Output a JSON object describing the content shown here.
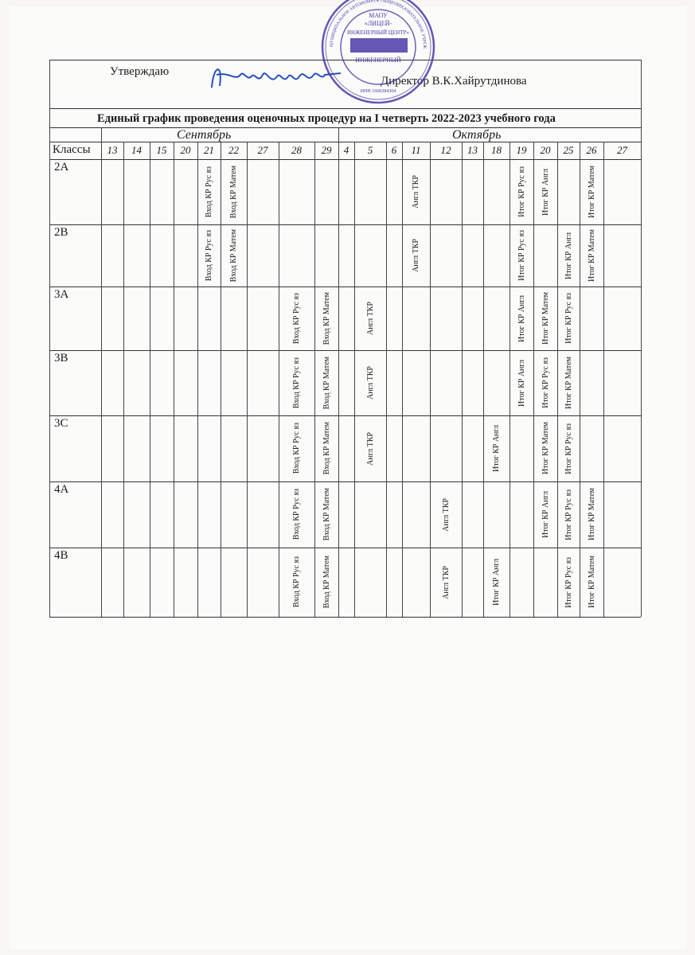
{
  "header": {
    "approve_label": "Утверждаю",
    "director_label": "Директор В.К.Хайрутдинова",
    "signature": "Хайрутдинова"
  },
  "stamp": {
    "outer_text": "МУНИЦИПАЛЬНОЕ АВТОНОМНОЕ ОБЩЕОБРАЗОВАТЕЛЬНОЕ УЧРЕЖДЕНИЕ «ЛИЦЕЙ «ИНЖЕНЕРНЫЙ ЦЕНТР» ОГРН 1161690174436",
    "line1": "МАОУ",
    "line2": "«ЛИЦЕЙ-",
    "line3": "ИНЖЕНЕРНЫЙ ЦЕНТР»",
    "line4": "ИНЖЕНЕРНЫЙ",
    "inn": "ИНН 1660284304",
    "color": "#4a3aa8"
  },
  "table": {
    "title": "Единый график проведения оценочных процедур на I четверть 2022-2023 учебного года",
    "months": [
      "Сентябрь",
      "Октябрь"
    ],
    "classes_label": "Классы",
    "days": [
      "13",
      "14",
      "15",
      "20",
      "21",
      "22",
      "27",
      "28",
      "29",
      "4",
      "5",
      "6",
      "11",
      "12",
      "13",
      "18",
      "19",
      "20",
      "25",
      "26",
      "27"
    ],
    "rows": [
      {
        "class": "2А",
        "cells": [
          "",
          "",
          "",
          "",
          "Вход КР Рус яз",
          "Вход КР Матем",
          "",
          "",
          "",
          "",
          "",
          "",
          "Англ ТКР",
          "",
          "",
          "",
          "Итог КР Рус яз",
          "Итог КР Англ",
          "",
          "Итог КР Матем",
          ""
        ]
      },
      {
        "class": "2В",
        "cells": [
          "",
          "",
          "",
          "",
          "Вход КР Рус яз",
          "Вход КР Матем",
          "",
          "",
          "",
          "",
          "",
          "",
          "Англ ТКР",
          "",
          "",
          "",
          "Итог КР Рус яз",
          "",
          "Итог КР Англ",
          "Итог КР Матем",
          ""
        ]
      },
      {
        "class": "3А",
        "cells": [
          "",
          "",
          "",
          "",
          "",
          "",
          "",
          "Вход КР Рус яз",
          "Вход КР Матем",
          "",
          "Англ ТКР",
          "",
          "",
          "",
          "",
          "",
          "Итог КР Англ",
          "Итог КР Матем",
          "Итог КР Рус яз",
          "",
          ""
        ]
      },
      {
        "class": "3В",
        "cells": [
          "",
          "",
          "",
          "",
          "",
          "",
          "",
          "Вход КР Рус яз",
          "Вход КР Матем",
          "",
          "Англ ТКР",
          "",
          "",
          "",
          "",
          "",
          "Итог КР Англ",
          "Итог КР Рус яз",
          "Итог КР Матем",
          "",
          ""
        ]
      },
      {
        "class": "3С",
        "cells": [
          "",
          "",
          "",
          "",
          "",
          "",
          "",
          "Вход КР Рус яз",
          "Вход КР Матем",
          "",
          "Англ ТКР",
          "",
          "",
          "",
          "",
          "Итог КР Англ",
          "",
          "Итог КР Матем",
          "Итог КР Рус яз",
          "",
          ""
        ]
      },
      {
        "class": "4А",
        "cells": [
          "",
          "",
          "",
          "",
          "",
          "",
          "",
          "Вход КР Рус яз",
          "Вход КР Матем",
          "",
          "",
          "",
          "",
          "Англ ТКР",
          "",
          "",
          "",
          "Итог КР Англ",
          "Итог КР Рус яз",
          "Итог КР Матем",
          ""
        ]
      },
      {
        "class": "4В",
        "cells": [
          "",
          "",
          "",
          "",
          "",
          "",
          "",
          "Вход КР Рус яз",
          "Вход КР Матем",
          "",
          "",
          "",
          "",
          "Англ ТКР",
          "",
          "Итог КР Англ",
          "",
          "",
          "Итог КР Рус яз",
          "Итог КР Матем",
          ""
        ]
      }
    ]
  }
}
